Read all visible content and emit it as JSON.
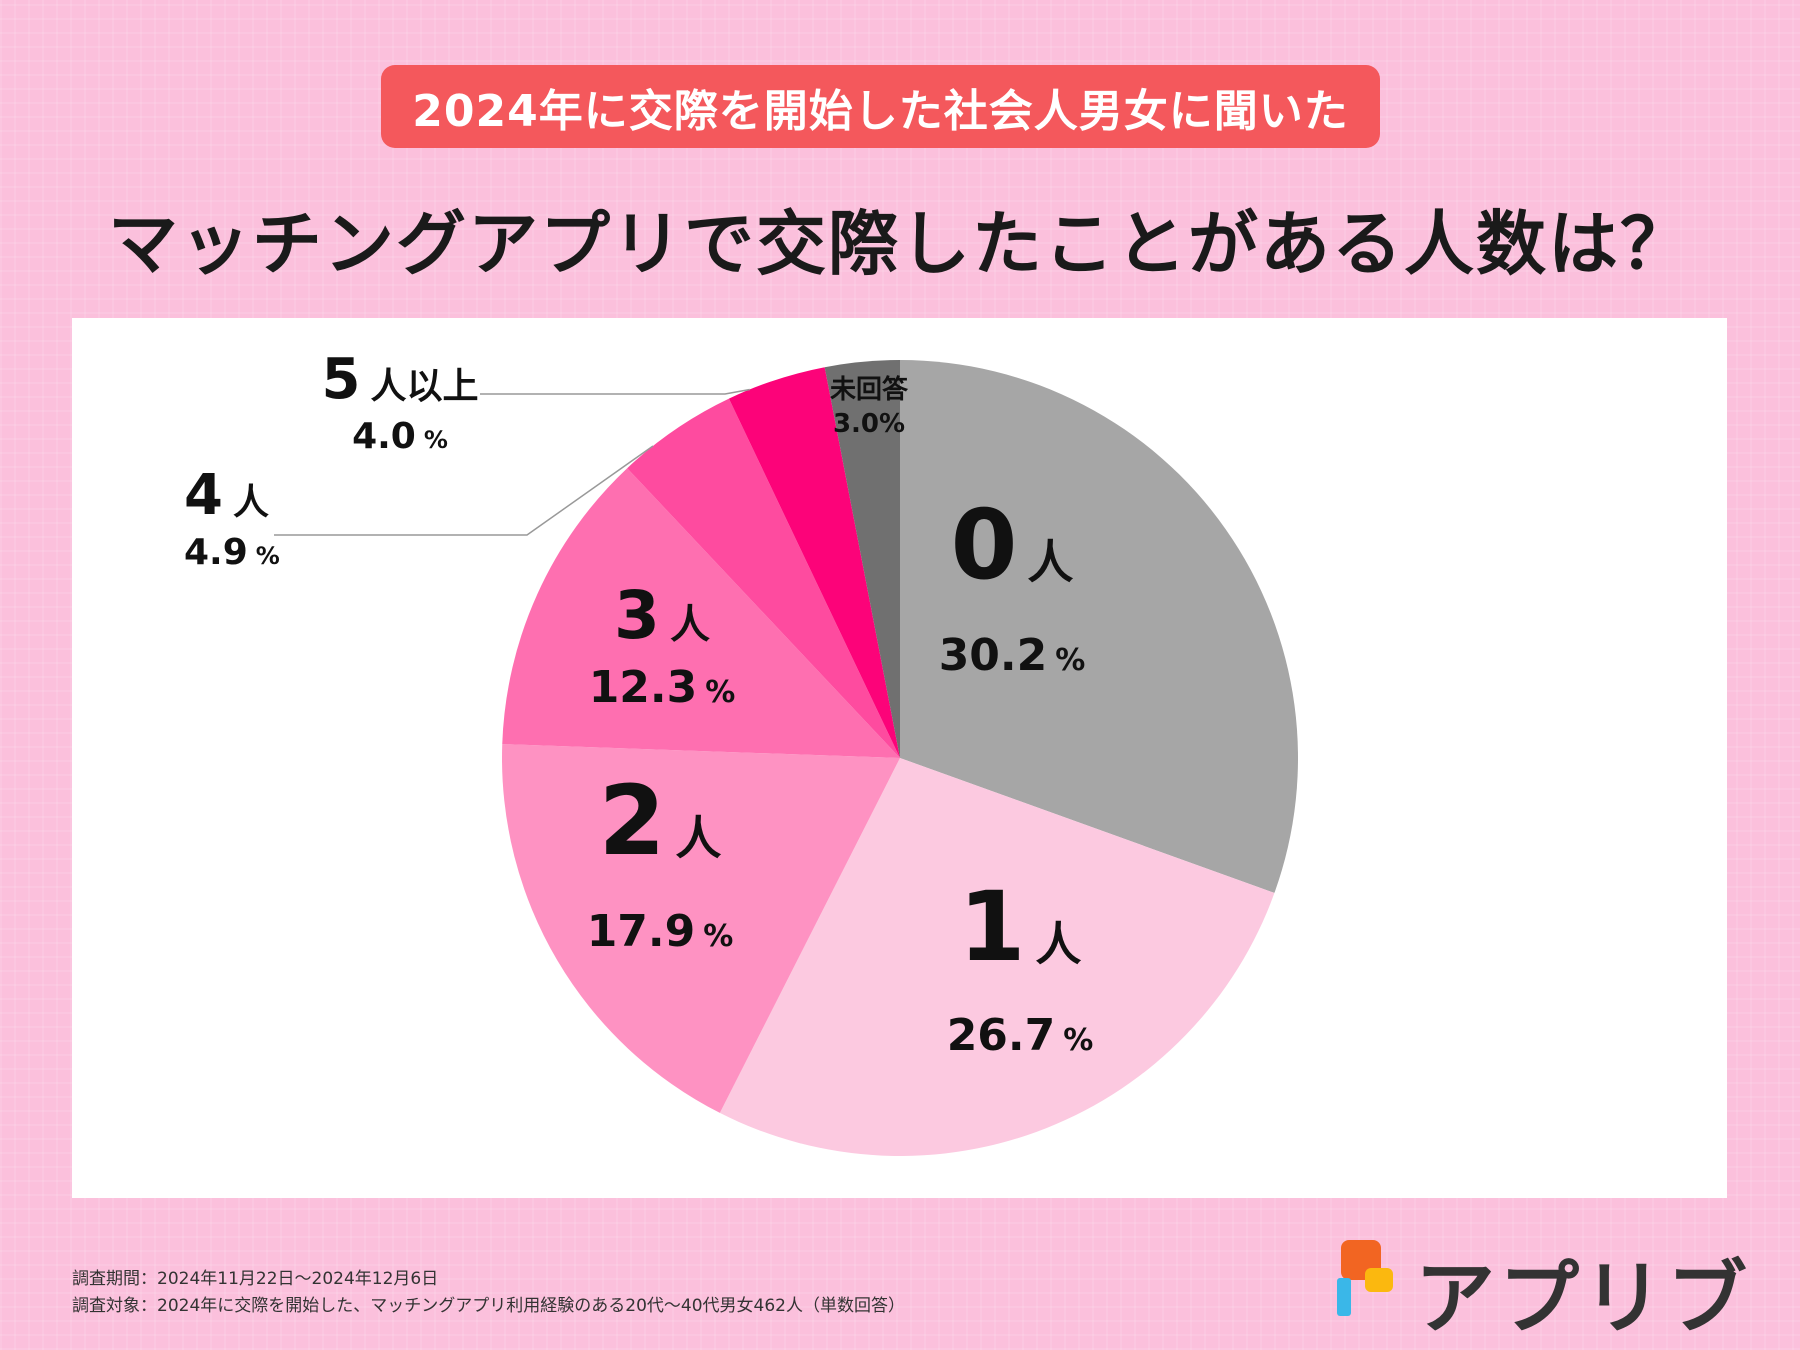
{
  "header": {
    "subtitle": "2024年に交際を開始した社会人男女に聞いた",
    "title": "マッチングアプリで交際したことがある人数は？"
  },
  "chart_data": {
    "type": "pie",
    "title": "マッチングアプリで交際したことがある人数は？",
    "unit_symbol": "%",
    "slices": [
      {
        "id": "s0",
        "num": "0",
        "unit": "人",
        "label": "0人",
        "value": 30.2,
        "value_text": "30.2",
        "color": "#a6a6a6"
      },
      {
        "id": "s1",
        "num": "1",
        "unit": "人",
        "label": "1人",
        "value": 26.7,
        "value_text": "26.7",
        "color": "#fcc9e0"
      },
      {
        "id": "s2",
        "num": "2",
        "unit": "人",
        "label": "2人",
        "value": 17.9,
        "value_text": "17.9",
        "color": "#fe92c2"
      },
      {
        "id": "s3",
        "num": "3",
        "unit": "人",
        "label": "3人",
        "value": 12.3,
        "value_text": "12.3",
        "color": "#fe6fb0"
      },
      {
        "id": "s4",
        "num": "4",
        "unit": "人",
        "label": "4人",
        "value": 4.9,
        "value_text": "4.9",
        "color": "#fe4b9f"
      },
      {
        "id": "s5",
        "num": "5",
        "unit": "人以上",
        "label": "5人以上",
        "value": 4.0,
        "value_text": "4.0",
        "color": "#fc0379"
      },
      {
        "id": "s6",
        "num": "",
        "unit": "",
        "label": "未回答",
        "value": 3.0,
        "value_text": "3.0%",
        "color": "#707070"
      }
    ]
  },
  "footnotes": {
    "period": "調査期間：2024年11月22日～2024年12月6日",
    "target": "調査対象：2024年に交際を開始した、マッチングアプリ利用経験のある20代～40代男女462人（単数回答）"
  },
  "logo": {
    "text": "アプリブ",
    "colors": [
      "#f26522",
      "#fbb80f",
      "#3ab7e8"
    ]
  }
}
